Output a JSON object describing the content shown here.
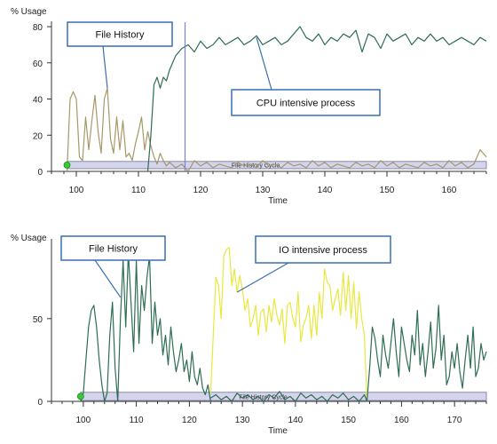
{
  "colors": {
    "cpu_line": "#2e6e52",
    "file_history_line_top": "#a89868",
    "file_history_line_bottom": "#2e6e52",
    "io_line": "#e8e840",
    "cycle_band_fill": "#d4d4ec",
    "cycle_band_stroke": "#8a8aaa",
    "callout_border": "#3a6fb0",
    "marker_line": "#7a82d8",
    "marker_dot": "#33cc33"
  },
  "chart_data": [
    {
      "type": "line",
      "title": "",
      "ylabel": "% Usage",
      "xlabel": "Time",
      "xlim": [
        96,
        166
      ],
      "ylim": [
        0,
        80
      ],
      "xticks": [
        100,
        110,
        120,
        130,
        140,
        150,
        160
      ],
      "yticks": [
        0,
        20,
        40,
        60,
        80
      ],
      "grid": false,
      "band": {
        "label": "File History Cycle",
        "x_start": 98.5,
        "x_end": 166,
        "y_low": 1.5,
        "y_high": 5.5
      },
      "marker_x": 117.5,
      "annotations": [
        {
          "text": "File History",
          "target_x": 105,
          "target_y": 46
        },
        {
          "text": "CPU intensive process",
          "target_x": 129,
          "target_y": 74
        }
      ],
      "series": [
        {
          "name": "",
          "role": "file_history",
          "x": [
            98.5,
            99,
            99.5,
            100,
            100.5,
            101,
            101.5,
            102,
            102.5,
            103,
            103.5,
            104,
            104.5,
            105,
            105.5,
            106,
            106.5,
            107,
            107.5,
            108,
            108.5,
            109,
            109.5,
            110,
            110.5,
            111,
            111.5,
            112,
            112.5,
            113,
            113.5,
            114,
            114.5,
            115,
            116,
            117,
            118,
            119,
            120,
            121,
            122,
            123,
            124,
            125,
            126,
            127,
            128,
            129,
            130,
            131,
            132,
            133,
            134,
            135,
            136,
            137,
            138,
            139,
            140,
            141,
            142,
            143,
            144,
            145,
            146,
            147,
            148,
            149,
            150,
            151,
            152,
            153,
            154,
            155,
            156,
            157,
            158,
            159,
            160,
            161,
            162,
            163,
            164,
            165,
            166
          ],
          "y": [
            0,
            40,
            44,
            40,
            8,
            6,
            30,
            12,
            28,
            42,
            22,
            10,
            40,
            46,
            18,
            10,
            30,
            12,
            28,
            8,
            10,
            6,
            15,
            22,
            30,
            12,
            22,
            14,
            8,
            4,
            10,
            6,
            3,
            5,
            2,
            4,
            0,
            6,
            3,
            5,
            2,
            4,
            3,
            2,
            5,
            3,
            4,
            2,
            6,
            3,
            4,
            2,
            5,
            3,
            4,
            2,
            6,
            3,
            5,
            2,
            4,
            3,
            2,
            5,
            3,
            4,
            2,
            6,
            3,
            5,
            2,
            4,
            3,
            2,
            5,
            3,
            4,
            2,
            6,
            3,
            5,
            2,
            4,
            12,
            8
          ]
        },
        {
          "name": "",
          "role": "cpu",
          "x": [
            111.5,
            112,
            112.5,
            113,
            113.5,
            114,
            114.5,
            115,
            115.5,
            116,
            116.5,
            117,
            118,
            119,
            120,
            121,
            122,
            123,
            124,
            125,
            126,
            127,
            128,
            129,
            130,
            131,
            132,
            133,
            134,
            135,
            136,
            137,
            138,
            139,
            140,
            141,
            142,
            143,
            144,
            145,
            146,
            147,
            148,
            149,
            150,
            151,
            152,
            153,
            154,
            155,
            156,
            157,
            158,
            159,
            160,
            161,
            162,
            163,
            164,
            165,
            166
          ],
          "y": [
            0,
            20,
            48,
            52,
            46,
            52,
            50,
            56,
            60,
            64,
            66,
            68,
            70,
            66,
            72,
            68,
            70,
            74,
            70,
            72,
            74,
            70,
            72,
            75,
            70,
            72,
            74,
            70,
            72,
            76,
            80,
            74,
            72,
            76,
            70,
            74,
            72,
            76,
            74,
            78,
            66,
            76,
            74,
            68,
            76,
            72,
            74,
            76,
            70,
            74,
            72,
            76,
            72,
            74,
            70,
            72,
            74,
            72,
            70,
            74,
            72
          ]
        }
      ]
    },
    {
      "type": "line",
      "title": "",
      "ylabel": "% Usage",
      "xlabel": "Time",
      "xlim": [
        94,
        176
      ],
      "ylim": [
        0,
        95
      ],
      "xticks": [
        100,
        110,
        120,
        130,
        140,
        150,
        160,
        170
      ],
      "yticks": [
        0,
        50
      ],
      "grid": false,
      "band": {
        "label": "File History Cycle",
        "x_start": 99.5,
        "x_end": 176,
        "y_low": 0.5,
        "y_high": 5.5
      },
      "marker_x": null,
      "annotations": [
        {
          "text": "File History",
          "target_x": 107,
          "target_y": 63
        },
        {
          "text": "IO intensive process",
          "target_x": 129,
          "target_y": 66
        }
      ],
      "series": [
        {
          "name": "",
          "role": "file_history",
          "x": [
            99.5,
            100,
            100.5,
            101,
            101.5,
            102,
            102.5,
            103,
            103.5,
            104,
            104.5,
            105,
            105.5,
            106,
            106.5,
            107,
            107.5,
            108,
            108.5,
            109,
            109.5,
            110,
            110.5,
            111,
            111.5,
            112,
            112.5,
            113,
            113.5,
            114,
            114.5,
            115,
            115.5,
            116,
            116.5,
            117,
            117.5,
            118,
            118.5,
            119,
            119.5,
            120,
            120.5,
            121,
            121.5,
            122,
            122.5,
            123,
            123.5,
            124
          ],
          "y": [
            0,
            5,
            25,
            45,
            55,
            58,
            45,
            25,
            10,
            0,
            5,
            40,
            60,
            20,
            0,
            50,
            85,
            45,
            90,
            60,
            30,
            85,
            35,
            70,
            55,
            75,
            88,
            35,
            60,
            40,
            50,
            28,
            40,
            22,
            45,
            30,
            18,
            25,
            35,
            18,
            25,
            12,
            30,
            15,
            10,
            20,
            8,
            4,
            10,
            0
          ]
        },
        {
          "name": "",
          "role": "io",
          "x": [
            124,
            124.5,
            125,
            125.5,
            126,
            126.5,
            127,
            127.5,
            128,
            128.5,
            129,
            129.5,
            130,
            130.5,
            131,
            131.5,
            132,
            132.5,
            133,
            133.5,
            134,
            134.5,
            135,
            135.5,
            136,
            136.5,
            137,
            137.5,
            138,
            138.5,
            139,
            139.5,
            140,
            140.5,
            141,
            141.5,
            142,
            142.5,
            143,
            143.5,
            144,
            144.5,
            145,
            145.5,
            146,
            146.5,
            147,
            147.5,
            148,
            148.5,
            149,
            149.5,
            150,
            150.5,
            151,
            151.5,
            152,
            152.5,
            153,
            153.5
          ],
          "y": [
            5,
            40,
            75,
            70,
            50,
            88,
            92,
            93,
            70,
            80,
            66,
            76,
            68,
            55,
            62,
            45,
            50,
            58,
            40,
            54,
            56,
            42,
            58,
            48,
            62,
            52,
            46,
            56,
            35,
            58,
            60,
            50,
            45,
            66,
            36,
            46,
            50,
            58,
            38,
            58,
            40,
            66,
            50,
            80,
            72,
            70,
            55,
            62,
            68,
            52,
            78,
            55,
            76,
            50,
            72,
            44,
            66,
            50,
            40,
            0
          ]
        },
        {
          "name": "",
          "role": "cpu",
          "x": [
            124,
            125,
            126,
            127,
            128,
            129,
            130,
            131,
            132,
            133,
            134,
            135,
            136,
            137,
            138,
            139,
            140,
            141,
            142,
            143,
            144,
            145,
            146,
            147,
            148,
            149,
            150,
            151,
            152,
            153,
            153.5,
            154,
            154.5,
            155,
            155.5,
            156,
            156.5,
            157,
            157.5,
            158,
            158.5,
            159,
            159.5,
            160,
            160.5,
            161,
            161.5,
            162,
            162.5,
            163,
            163.5,
            164,
            164.5,
            165,
            165.5,
            166,
            166.5,
            167,
            167.5,
            168,
            168.5,
            169,
            169.5,
            170,
            170.5,
            171,
            171.5,
            172,
            172.5,
            173,
            173.5,
            174,
            174.5,
            175,
            175.5,
            176
          ],
          "y": [
            2,
            4,
            1,
            3,
            0,
            5,
            2,
            4,
            1,
            3,
            0,
            4,
            2,
            6,
            1,
            3,
            0,
            5,
            2,
            4,
            1,
            3,
            0,
            4,
            2,
            5,
            1,
            3,
            0,
            4,
            0,
            20,
            45,
            38,
            25,
            15,
            40,
            28,
            20,
            35,
            50,
            30,
            15,
            45,
            35,
            25,
            18,
            40,
            28,
            55,
            22,
            35,
            15,
            30,
            48,
            20,
            32,
            58,
            25,
            40,
            10,
            15,
            30,
            20,
            35,
            18,
            8,
            25,
            40,
            20,
            45,
            15,
            20,
            35,
            25,
            30
          ]
        }
      ]
    }
  ]
}
